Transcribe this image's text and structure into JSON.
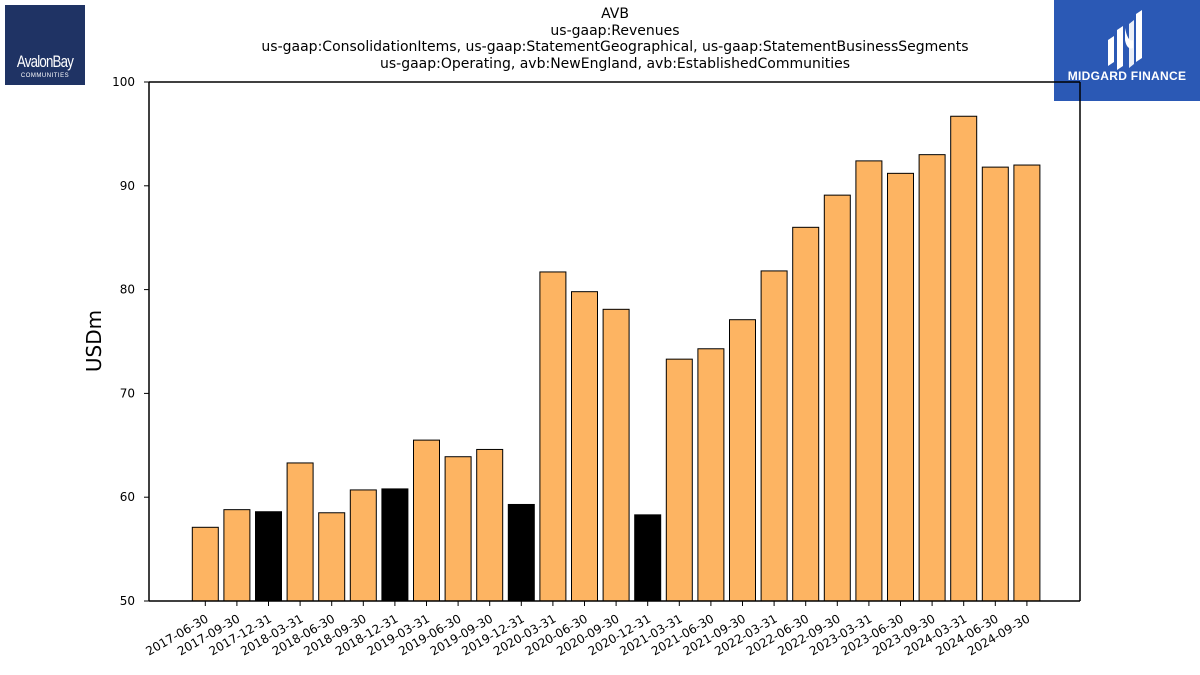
{
  "logos": {
    "left_brand": "AvalonBay",
    "left_sub": "COMMUNITIES",
    "right_brand": "MIDGARD FINANCE",
    "right_icon": "midgard-logo-icon"
  },
  "colors": {
    "bar_fill": "#FDB462",
    "bar_highlight": "#000000",
    "bar_stroke": "#000000",
    "left_logo_bg": "#1f3364",
    "right_logo_bg": "#2b59b5"
  },
  "chart_data": {
    "type": "bar",
    "title_lines": [
      "AVB",
      "us-gaap:Revenues",
      "us-gaap:ConsolidationItems, us-gaap:StatementGeographical, us-gaap:StatementBusinessSegments",
      "us-gaap:Operating, avb:NewEngland, avb:EstablishedCommunities"
    ],
    "xlabel": "",
    "ylabel": "USDm",
    "ylim": [
      50,
      100
    ],
    "yticks": [
      50,
      60,
      70,
      80,
      90,
      100
    ],
    "grid": false,
    "categories": [
      "2017-06-30",
      "2017-09-30",
      "2017-12-31",
      "2018-03-31",
      "2018-06-30",
      "2018-09-30",
      "2018-12-31",
      "2019-03-31",
      "2019-06-30",
      "2019-09-30",
      "2019-12-31",
      "2020-03-31",
      "2020-06-30",
      "2020-09-30",
      "2020-12-31",
      "2021-03-31",
      "2021-06-30",
      "2021-09-30",
      "2022-03-31",
      "2022-06-30",
      "2022-09-30",
      "2023-03-31",
      "2023-06-30",
      "2023-09-30",
      "2024-03-31",
      "2024-06-30",
      "2024-09-30"
    ],
    "values": [
      57.1,
      58.8,
      58.6,
      63.3,
      58.5,
      60.7,
      60.8,
      65.5,
      63.9,
      64.6,
      59.3,
      81.7,
      79.8,
      78.1,
      58.3,
      73.3,
      74.3,
      77.1,
      81.8,
      86.0,
      89.1,
      92.4,
      91.2,
      93.0,
      96.7,
      91.8,
      92.0
    ],
    "highlighted": [
      "2017-12-31",
      "2018-12-31",
      "2019-12-31",
      "2020-12-31"
    ]
  }
}
